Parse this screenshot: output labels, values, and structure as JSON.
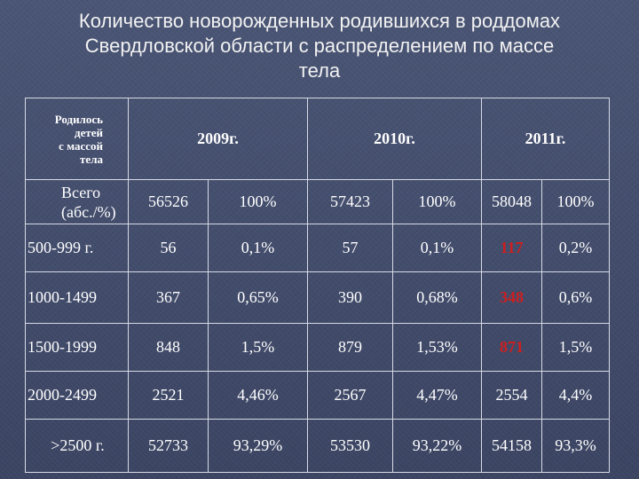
{
  "title": {
    "line1": "Количество новорожденных родившихся в роддомах",
    "line2": "Свердловской области с распределением по массе",
    "line3": "тела"
  },
  "table": {
    "corner": [
      "Родилось",
      "детей",
      "с массой",
      "тела"
    ],
    "years": [
      "2009г.",
      "2010г.",
      "2011г."
    ],
    "first_row_label": [
      "Всего",
      "(абс./%)"
    ],
    "rows": [
      {
        "label": "Всего (абс./%)",
        "v": [
          "56526",
          "100%",
          "57423",
          "100%",
          "58048",
          "100%"
        ]
      },
      {
        "label": "500-999 г.",
        "v": [
          "56",
          "0,1%",
          "57",
          "0,1%",
          "117",
          "0,2%"
        ]
      },
      {
        "label": "1000-1499",
        "v": [
          "367",
          "0,65%",
          "390",
          "0,68%",
          "348",
          "0,6%"
        ]
      },
      {
        "label": "1500-1999",
        "v": [
          "848",
          "1,5%",
          "879",
          "1,53%",
          "871",
          "1,5%"
        ]
      },
      {
        "label": "2000-2499",
        "v": [
          "2521",
          "4,46%",
          "2567",
          "4,47%",
          "2554",
          "4,4%"
        ]
      },
      {
        "label": ">2500 г.",
        "v": [
          "52733",
          "93,29%",
          "53530",
          "93,22%",
          "54158",
          "93,3%"
        ]
      }
    ]
  },
  "colors": {
    "background": "#3f4a6a",
    "text": "#ffffff",
    "highlight": "#cc1f1f",
    "grid": "#d7dbe6"
  }
}
